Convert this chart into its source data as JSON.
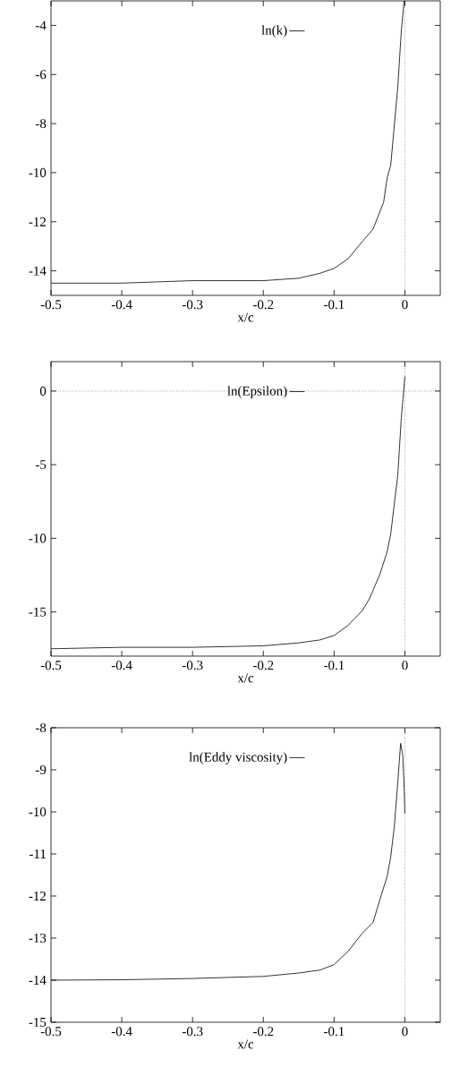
{
  "chart_data": [
    {
      "type": "line",
      "xlabel": "x/c",
      "xlim": [
        -0.5,
        0.05
      ],
      "ylim": [
        -15,
        -3
      ],
      "xticks": [
        -0.5,
        -0.4,
        -0.3,
        -0.2,
        -0.1,
        0
      ],
      "yticks": [
        -14,
        -12,
        -10,
        -8,
        -6,
        -4
      ],
      "legend": "top",
      "grid": false,
      "marker": "none",
      "line_style": "solid",
      "ref_lines": [
        {
          "axis": "x",
          "value": 0,
          "color": "#000000",
          "line_style": "dotted"
        }
      ],
      "series": [
        {
          "name": "ln(k)",
          "color": "#000000",
          "x": [
            -0.5,
            -0.4,
            -0.3,
            -0.2,
            -0.15,
            -0.12,
            -0.1,
            -0.08,
            -0.06,
            -0.045,
            -0.03,
            -0.025,
            -0.02,
            -0.01,
            -0.005,
            -0.002,
            -0.001
          ],
          "values": [
            -14.5,
            -14.5,
            -14.4,
            -14.4,
            -14.3,
            -14.1,
            -13.9,
            -13.5,
            -12.8,
            -12.3,
            -11.2,
            -10.2,
            -9.7,
            -6.5,
            -4.2,
            -3.3,
            -3.0
          ]
        }
      ]
    },
    {
      "type": "line",
      "xlabel": "x/c",
      "xlim": [
        -0.5,
        0.05
      ],
      "ylim": [
        -18,
        2
      ],
      "xticks": [
        -0.5,
        -0.4,
        -0.3,
        -0.2,
        -0.1,
        0
      ],
      "yticks": [
        -15,
        -10,
        -5,
        0
      ],
      "legend": "top",
      "grid": false,
      "marker": "none",
      "line_style": "solid",
      "ref_lines": [
        {
          "axis": "x",
          "value": 0,
          "color": "#000000",
          "line_style": "dotted"
        },
        {
          "axis": "y",
          "value": 0,
          "color": "#000000",
          "line_style": "dotted"
        }
      ],
      "series": [
        {
          "name": "ln(Epsilon)",
          "color": "#000000",
          "x": [
            -0.5,
            -0.4,
            -0.3,
            -0.2,
            -0.15,
            -0.12,
            -0.1,
            -0.08,
            -0.06,
            -0.05,
            -0.035,
            -0.025,
            -0.02,
            -0.01,
            -0.005,
            0
          ],
          "values": [
            -17.5,
            -17.4,
            -17.4,
            -17.3,
            -17.1,
            -16.9,
            -16.6,
            -15.9,
            -14.9,
            -14.1,
            -12.4,
            -10.9,
            -9.7,
            -5.7,
            -1.8,
            1.0
          ]
        }
      ]
    },
    {
      "type": "line",
      "xlabel": "x/c",
      "xlim": [
        -0.5,
        0.05
      ],
      "ylim": [
        -15,
        -8
      ],
      "xticks": [
        -0.5,
        -0.4,
        -0.3,
        -0.2,
        -0.1,
        0
      ],
      "yticks": [
        -15,
        -14,
        -13,
        -12,
        -11,
        -10,
        -9,
        -8
      ],
      "legend": "top",
      "grid": false,
      "marker": "none",
      "line_style": "solid",
      "ref_lines": [
        {
          "axis": "x",
          "value": 0,
          "color": "#000000",
          "line_style": "dotted"
        }
      ],
      "series": [
        {
          "name": "ln(Eddy viscosity)",
          "color": "#000000",
          "x": [
            -0.5,
            -0.4,
            -0.3,
            -0.2,
            -0.15,
            -0.12,
            -0.1,
            -0.08,
            -0.06,
            -0.045,
            -0.035,
            -0.025,
            -0.02,
            -0.015,
            -0.01,
            -0.006,
            -0.003,
            -0.001,
            0
          ],
          "values": [
            -14.0,
            -13.99,
            -13.96,
            -13.91,
            -13.83,
            -13.76,
            -13.63,
            -13.31,
            -12.88,
            -12.63,
            -12.07,
            -11.53,
            -11.07,
            -10.36,
            -9.29,
            -8.37,
            -8.65,
            -9.44,
            -10.04
          ]
        }
      ]
    }
  ]
}
